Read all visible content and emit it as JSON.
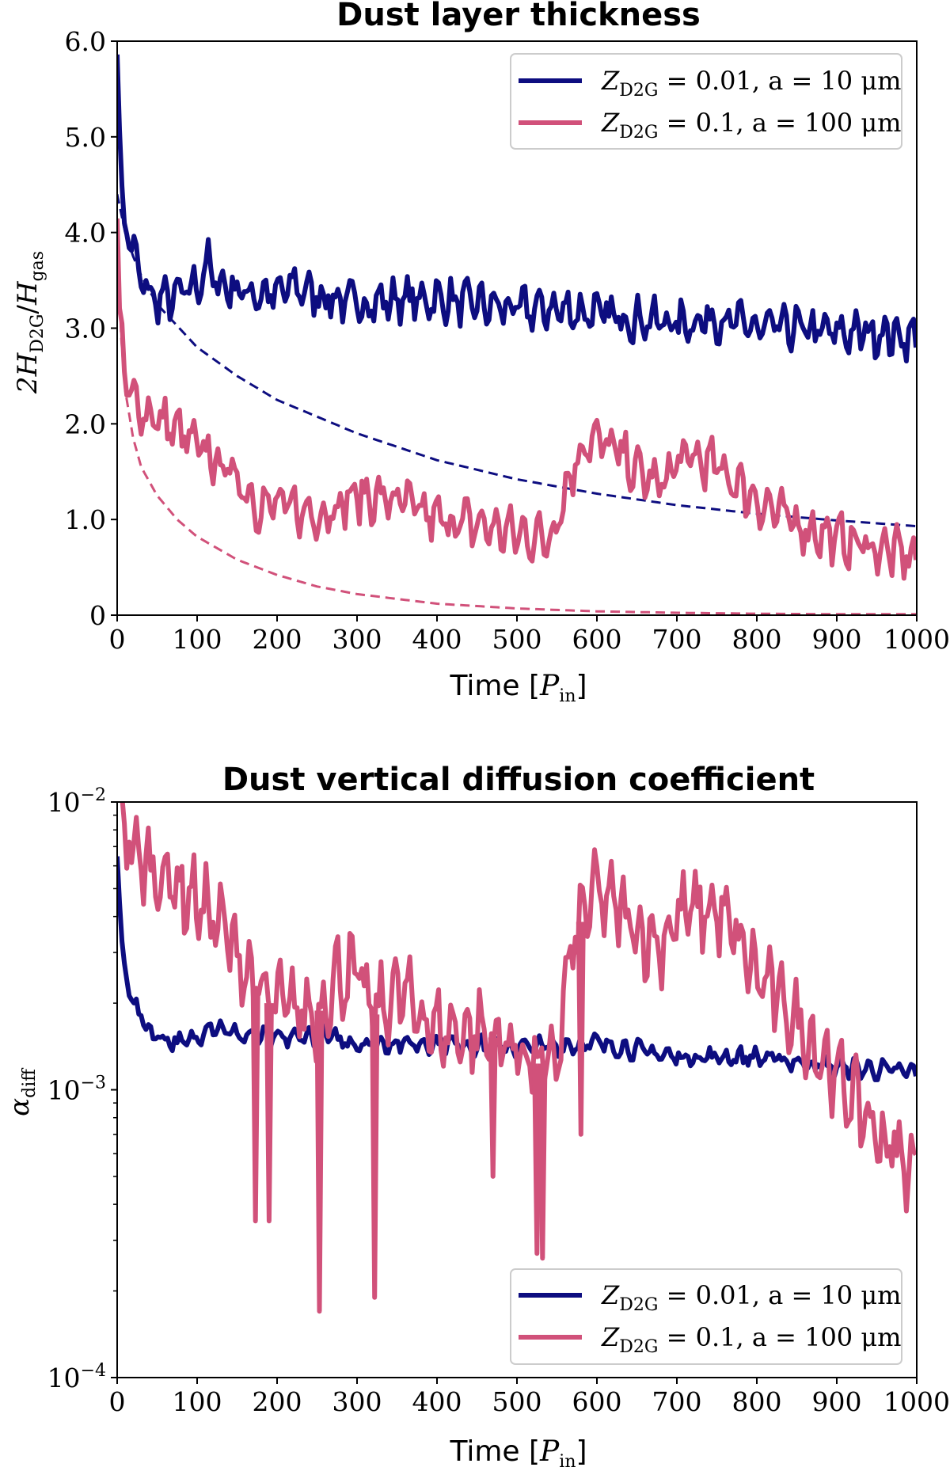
{
  "colors": {
    "blue": "#0d0d80",
    "pink": "#d1517a"
  },
  "legend": [
    {
      "label": "Z_D2G = 0.01, a = 10 μm",
      "zpart": "Z",
      "zsub": "D2G",
      "rest": " = 0.01, a = 10 μm",
      "color": "#0d0d80"
    },
    {
      "label": "Z_D2G = 0.1, a = 100 μm",
      "zpart": "Z",
      "zsub": "D2G",
      "rest": " = 0.1, a = 100 μm",
      "color": "#d1517a"
    }
  ],
  "chart_data": [
    {
      "type": "line",
      "title": "Dust layer thickness",
      "xlabel_main": "Time [",
      "xlabel_sym": "P",
      "xlabel_sub": "in",
      "xlabel_end": "]",
      "ylabel": "2H_D2G / H_gas",
      "xlim": [
        0,
        1000
      ],
      "ylim": [
        0,
        6
      ],
      "xticks": [
        "0",
        "100",
        "200",
        "300",
        "400",
        "500",
        "600",
        "700",
        "800",
        "900",
        "1000"
      ],
      "yticks": [
        {
          "v": 0,
          "label": "0"
        },
        {
          "v": 1,
          "label": "1.0"
        },
        {
          "v": 2,
          "label": "2.0"
        },
        {
          "v": 3,
          "label": "3.0"
        },
        {
          "v": 4,
          "label": "4.0"
        },
        {
          "v": 5,
          "label": "5.0"
        },
        {
          "v": 6,
          "label": "6.0"
        }
      ],
      "series": [
        {
          "name": "Z_D2G = 0.01, a = 10 μm",
          "style": "solid",
          "color": "#0d0d80",
          "x": [
            0,
            2,
            5,
            10,
            20,
            30,
            40,
            50,
            60,
            80,
            100,
            115,
            120,
            150,
            180,
            200,
            220,
            250,
            275,
            300,
            350,
            400,
            450,
            500,
            550,
            600,
            650,
            700,
            750,
            800,
            850,
            900,
            950,
            1000
          ],
          "y": [
            6.0,
            5.0,
            4.5,
            4.1,
            3.8,
            3.5,
            3.35,
            3.3,
            3.3,
            3.35,
            3.45,
            3.7,
            3.5,
            3.4,
            3.35,
            3.35,
            3.45,
            3.35,
            3.3,
            3.25,
            3.3,
            3.3,
            3.25,
            3.2,
            3.2,
            3.15,
            3.1,
            3.05,
            3.1,
            3.0,
            3.0,
            2.95,
            2.95,
            2.9
          ],
          "amp": 0.28
        },
        {
          "name": "Z_D2G = 0.01, a = 10 μm (model)",
          "style": "dashed",
          "color": "#0d0d80",
          "x": [
            0,
            5,
            10,
            20,
            30,
            50,
            100,
            150,
            200,
            300,
            400,
            500,
            600,
            700,
            800,
            900,
            1000
          ],
          "y": [
            4.4,
            4.2,
            4.0,
            3.75,
            3.55,
            3.25,
            2.8,
            2.5,
            2.25,
            1.9,
            1.62,
            1.42,
            1.27,
            1.15,
            1.06,
            0.99,
            0.93
          ],
          "amp": 0
        },
        {
          "name": "Z_D2G = 0.1, a = 100 μm",
          "style": "solid",
          "color": "#d1517a",
          "x": [
            0,
            3,
            10,
            20,
            40,
            60,
            80,
            100,
            150,
            175,
            200,
            250,
            300,
            350,
            400,
            450,
            500,
            540,
            555,
            565,
            575,
            590,
            620,
            650,
            680,
            700,
            720,
            750,
            780,
            800,
            850,
            900,
            950,
            1000
          ],
          "y": [
            4.2,
            3.0,
            2.45,
            2.25,
            2.1,
            2.0,
            1.9,
            1.75,
            1.45,
            1.15,
            1.15,
            1.05,
            1.25,
            1.2,
            1.0,
            0.95,
            0.85,
            0.8,
            1.15,
            1.4,
            1.65,
            1.85,
            1.75,
            1.5,
            1.35,
            1.6,
            1.65,
            1.55,
            1.35,
            1.2,
            0.95,
            0.8,
            0.7,
            0.6
          ],
          "amp": 0.32
        },
        {
          "name": "Z_D2G = 0.1, a = 100 μm (model)",
          "style": "dashed",
          "color": "#d1517a",
          "x": [
            0,
            5,
            10,
            20,
            30,
            50,
            75,
            100,
            150,
            200,
            250,
            300,
            400,
            500,
            600,
            700,
            800,
            900,
            1000
          ],
          "y": [
            4.0,
            2.9,
            2.35,
            1.85,
            1.55,
            1.25,
            1.0,
            0.82,
            0.58,
            0.42,
            0.3,
            0.22,
            0.12,
            0.07,
            0.04,
            0.025,
            0.015,
            0.01,
            0.01
          ],
          "amp": 0
        }
      ]
    },
    {
      "type": "line",
      "title": "Dust vertical diffusion coefficient",
      "xlabel_main": "Time [",
      "xlabel_sym": "P",
      "xlabel_sub": "in",
      "xlabel_end": "]",
      "ylabel": "α_diff",
      "yscale": "log",
      "xlim": [
        0,
        1000
      ],
      "ylim": [
        0.0001,
        0.01
      ],
      "xticks": [
        "0",
        "100",
        "200",
        "300",
        "400",
        "500",
        "600",
        "700",
        "800",
        "900",
        "1000"
      ],
      "yticks": [
        {
          "v": 0.01,
          "base": "10",
          "exp": "−2"
        },
        {
          "v": 0.001,
          "base": "10",
          "exp": "−3"
        },
        {
          "v": 0.0001,
          "base": "10",
          "exp": "−4"
        }
      ],
      "series": [
        {
          "name": "Z_D2G = 0.01, a = 10 μm",
          "style": "solid",
          "color": "#0d0d80",
          "x": [
            0,
            2,
            5,
            10,
            20,
            30,
            40,
            60,
            80,
            100,
            115,
            150,
            200,
            250,
            300,
            400,
            500,
            600,
            700,
            800,
            900,
            1000
          ],
          "y": [
            0.0065,
            0.0045,
            0.0033,
            0.0026,
            0.002,
            0.0018,
            0.0016,
            0.0015,
            0.00145,
            0.0015,
            0.0017,
            0.00155,
            0.0015,
            0.00155,
            0.00145,
            0.00145,
            0.0014,
            0.00145,
            0.0013,
            0.0013,
            0.0012,
            0.00115
          ],
          "amp": 0.12
        },
        {
          "name": "Z_D2G = 0.1, a = 100 μm",
          "style": "solid",
          "color": "#d1517a",
          "x": [
            0,
            10,
            20,
            40,
            60,
            80,
            100,
            120,
            150,
            175,
            190,
            200,
            250,
            275,
            300,
            320,
            350,
            400,
            450,
            500,
            530,
            550,
            560,
            575,
            590,
            600,
            620,
            650,
            680,
            700,
            720,
            750,
            775,
            800,
            850,
            900,
            950,
            1000
          ],
          "y": [
            0.012,
            0.0085,
            0.0065,
            0.006,
            0.0055,
            0.005,
            0.0045,
            0.004,
            0.003,
            0.0022,
            0.002,
            0.002,
            0.0018,
            0.0025,
            0.0025,
            0.0018,
            0.0022,
            0.0016,
            0.0016,
            0.0014,
            0.0012,
            0.0012,
            0.0022,
            0.0035,
            0.0045,
            0.0048,
            0.0044,
            0.0036,
            0.0032,
            0.004,
            0.0042,
            0.0042,
            0.0033,
            0.0025,
            0.0017,
            0.0011,
            0.0007,
            0.0005
          ],
          "amp": 0.5
        }
      ],
      "dips": [
        {
          "x": 173,
          "y": 0.00035
        },
        {
          "x": 190,
          "y": 0.00035
        },
        {
          "x": 253,
          "y": 0.00017
        },
        {
          "x": 322,
          "y": 0.00019
        },
        {
          "x": 470,
          "y": 0.0005
        },
        {
          "x": 525,
          "y": 0.00027
        },
        {
          "x": 532,
          "y": 0.00026
        },
        {
          "x": 580,
          "y": 0.0007
        }
      ]
    }
  ]
}
